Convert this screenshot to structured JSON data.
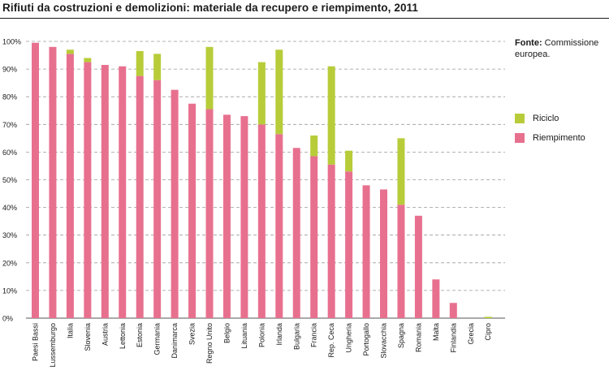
{
  "title": "Rifiuti da costruzioni e demolizioni: materiale da recupero e riempimento, 2011",
  "source": {
    "label": "Fonte:",
    "text": "Commissione europea."
  },
  "colors": {
    "riciclo": "#b8cc3a",
    "riempimento": "#e8708f",
    "grid": "#9a9a9a",
    "axis": "#555555"
  },
  "chart_data": {
    "type": "bar",
    "stacked": true,
    "categories": [
      "Paesi Bassi",
      "Lussemburgo",
      "Italia",
      "Slovenia",
      "Austria",
      "Lettonia",
      "Estonia",
      "Germania",
      "Danimarca",
      "Svezia",
      "Regno Unito",
      "Belgio",
      "Lituania",
      "Polonia",
      "Irlanda",
      "Bulgaria",
      "Francia",
      "Rep. Ceca",
      "Ungheria",
      "Portogallo",
      "Slovacchia",
      "Spagna",
      "Romania",
      "Malta",
      "Finlandia",
      "Grecia",
      "Cipro"
    ],
    "series": [
      {
        "name": "Riempimento",
        "values": [
          99.5,
          98,
          95.5,
          92.5,
          91.5,
          91,
          87.5,
          86,
          82.5,
          77.5,
          75.5,
          73.5,
          73,
          70,
          66.5,
          61.5,
          58.5,
          55.5,
          53,
          48,
          46.5,
          41,
          37,
          14,
          5.5,
          0,
          0
        ]
      },
      {
        "name": "Riciclo",
        "values": [
          0,
          0,
          1.5,
          1.5,
          0,
          0,
          9,
          9.5,
          0,
          0,
          22.5,
          0,
          0,
          22.5,
          30.5,
          0,
          7.5,
          35.5,
          7.5,
          0,
          0,
          24,
          0,
          0,
          0,
          0,
          0.5
        ]
      }
    ],
    "y_ticks": [
      "0%",
      "10%",
      "20%",
      "30%",
      "40%",
      "50%",
      "60%",
      "70%",
      "80%",
      "90%",
      "100%"
    ],
    "ylim": [
      0,
      100
    ],
    "grid": true,
    "legend_position": "right"
  }
}
